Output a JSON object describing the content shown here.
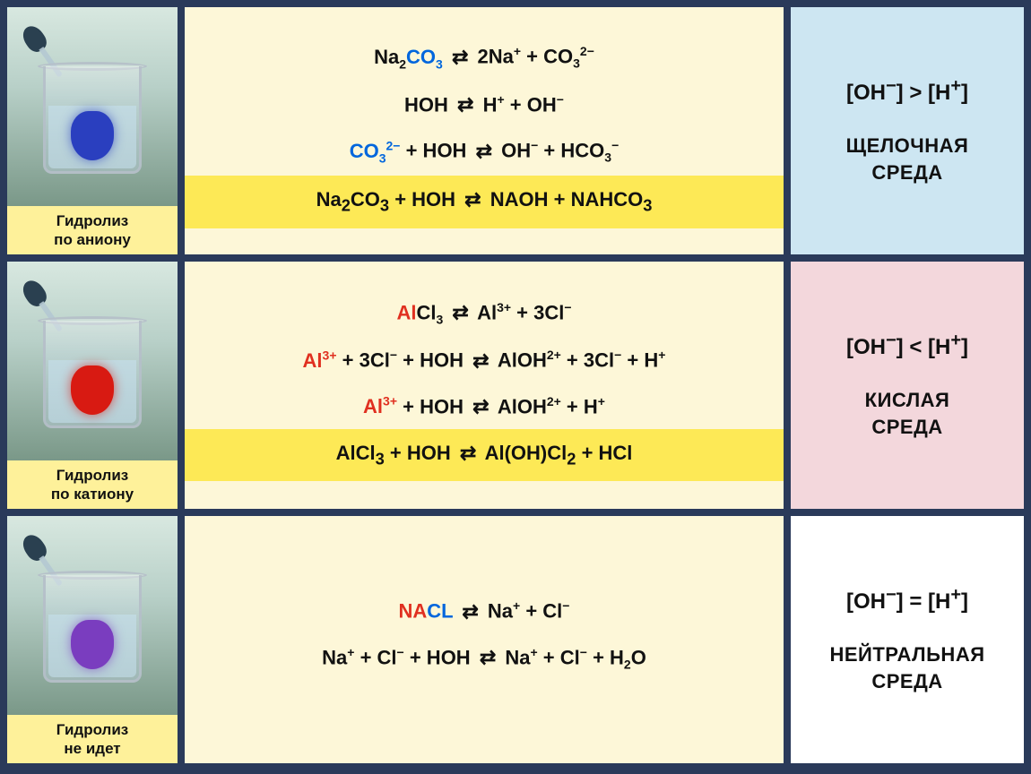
{
  "colors": {
    "page_bg": "#2a3a5a",
    "eq_bg": "#fdf7d8",
    "eq_footer_bg": "#fde956",
    "left_label_bg": "#fef19a",
    "text_black": "#111111",
    "text_blue": "#0066dd",
    "text_red": "#e03020",
    "row1_right_bg": "#cde6f2",
    "row2_right_bg": "#f3d7dc",
    "row3_right_bg": "#ffffff",
    "row1_drop": "#2a3fbf",
    "row2_drop": "#d81a12",
    "row3_drop": "#7a3dbf"
  },
  "rows": [
    {
      "id": "anion",
      "drop_color": "#2a3fbf",
      "left_label_l1": "Гидролиз",
      "left_label_l2": "по аниону",
      "right_bg": "#cde6f2",
      "ion_relation_html": "[OH<sup>−</sup>] &gt; [H<sup>+</sup>]",
      "env_line1": "ЩЕЛОЧНАЯ",
      "env_line2": "СРЕДА",
      "equations": [
        "<span class='c-black'>Na<sub>2</sub></span><span class='c-blue'>CO<sub>3</sub></span> <span class='arr'>⇄</span> 2Na<sup>+</sup> + CO<sub>3</sub><sup>2−</sup>",
        "HOH <span class='arr'>⇄</span> H<sup>+</sup> + OH<sup>−</sup>",
        "<span class='c-blue'>CO<sub>3</sub><sup>2−</sup></span> + HOH <span class='arr'>⇄</span> OH<sup>−</sup> + HCO<sub>3</sub><sup>−</sup>"
      ],
      "footer_html": "Na<sub>2</sub>CO<sub>3</sub> + HOH <span class='arr'>⇄</span> NAOH + NAHCO<sub>3</sub>"
    },
    {
      "id": "cation",
      "drop_color": "#d81a12",
      "left_label_l1": "Гидролиз",
      "left_label_l2": "по катиону",
      "right_bg": "#f3d7dc",
      "ion_relation_html": "[OH<sup>−</sup>] &lt; [H<sup>+</sup>]",
      "env_line1": "КИСЛАЯ",
      "env_line2": "СРЕДА",
      "equations": [
        "<span class='c-red'>Al</span>Cl<sub>3</sub> <span class='arr'>⇄</span> Al<sup>3+</sup> + 3Cl<sup>−</sup>",
        "<span class='c-red'>Al<sup>3+</sup></span> + 3Cl<sup>−</sup> + HOH <span class='arr'>⇄</span> AlOH<sup>2+</sup> + 3Cl<sup>−</sup> + H<sup>+</sup>",
        "<span class='c-red'>Al<sup>3+</sup></span> + HOH <span class='arr'>⇄</span> AlOH<sup>2+</sup> + H<sup>+</sup>"
      ],
      "footer_html": "AlCl<sub>3</sub> + HOH <span class='arr'>⇄</span> Al(OH)Cl<sub>2</sub> + HCl"
    },
    {
      "id": "none",
      "drop_color": "#7a3dbf",
      "left_label_l1": "Гидролиз",
      "left_label_l2": "не идет",
      "right_bg": "#ffffff",
      "ion_relation_html": "[OH<sup>−</sup>] = [H<sup>+</sup>]",
      "env_line1": "НЕЙТРАЛЬНАЯ",
      "env_line2": "СРЕДА",
      "equations": [
        "<span class='c-red'>NA</span><span class='c-blue'>CL</span> <span class='arr'>⇄</span> Na<sup>+</sup> + Cl<sup>−</sup>",
        "Na<sup>+</sup> + Cl<sup>−</sup> + HOH <span class='arr'>⇄</span> Na<sup>+</sup> + Cl<sup>−</sup> + H<sub>2</sub>O"
      ],
      "footer_html": null
    }
  ]
}
